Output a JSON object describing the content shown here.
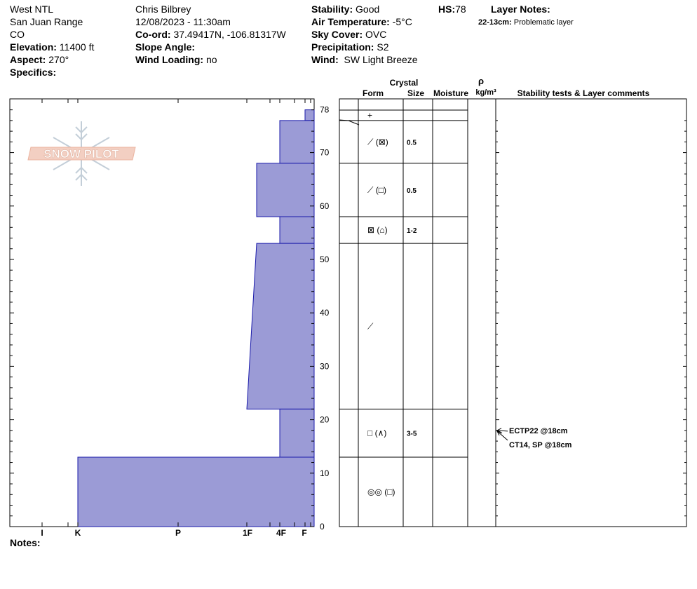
{
  "header": {
    "location_name": "West NTL",
    "range": "San Juan Range",
    "state": "CO",
    "elevation_label": "Elevation:",
    "elevation_value": "11400 ft",
    "aspect_label": "Aspect:",
    "aspect_value": "270°",
    "specifics_label": "Specifics:",
    "observer": "Chris Bilbrey",
    "datetime": "12/08/2023 - 11:30am",
    "coord_label": "Co-ord:",
    "coord_value": "37.49417N, -106.81317W",
    "slope_label": "Slope Angle:",
    "wind_loading_label": "Wind Loading:",
    "wind_loading_value": "no",
    "stability_label": "Stability:",
    "stability_value": "Good",
    "air_temp_label": "Air Temperature:",
    "air_temp_value": "-5°C",
    "sky_label": "Sky Cover:",
    "sky_value": "OVC",
    "precip_label": "Precipitation:",
    "precip_value": "S2",
    "wind_label": "Wind:",
    "wind_value": "SW Light Breeze",
    "hs_label": "HS:",
    "hs_value": "78",
    "layer_notes_label": "Layer Notes:",
    "layer_note_range": "22-13cm:",
    "layer_note_text": "Problematic layer",
    "notes_label": "Notes:"
  },
  "logo_text": "SNOW PILOT",
  "table_headers": {
    "crystal": "Crystal",
    "form": "Form",
    "size": "Size",
    "moisture": "Moisture",
    "rho": "ρ",
    "density_unit": "kg/m³",
    "comments": "Stability tests & Layer comments"
  },
  "colors": {
    "fill": "#9b9bd6",
    "stroke": "#1a1aaa"
  },
  "chart_data": {
    "type": "area",
    "title": "",
    "ylabel": "",
    "xlabel": "",
    "y_ticks": [
      0,
      10,
      20,
      30,
      40,
      50,
      60,
      70
    ],
    "hs_label": "78",
    "hardness_scale": [
      "F",
      "4F",
      "1F",
      "P",
      "K",
      "I"
    ],
    "hardness_ticks_shown": [
      "I",
      "K",
      "P",
      "1F",
      "4F",
      "F"
    ],
    "layers": [
      {
        "top": 78,
        "bottom": 76,
        "hardness_top": "F",
        "hardness_bottom": "F"
      },
      {
        "top": 76,
        "bottom": 68,
        "hardness_top": "4F",
        "hardness_bottom": "4F"
      },
      {
        "top": 68,
        "bottom": 58,
        "hardness_top": "1F+",
        "hardness_bottom": "1F+"
      },
      {
        "top": 58,
        "bottom": 53,
        "hardness_top": "4F",
        "hardness_bottom": "4F"
      },
      {
        "top": 53,
        "bottom": 22,
        "hardness_top": "1F+",
        "hardness_bottom": "1F"
      },
      {
        "top": 22,
        "bottom": 13,
        "hardness_top": "4F",
        "hardness_bottom": "4F"
      },
      {
        "top": 13,
        "bottom": 0,
        "hardness_top": "K",
        "hardness_bottom": "K"
      }
    ],
    "grain_layers": [
      {
        "top": 78,
        "bottom": 76,
        "form": "+",
        "size": ""
      },
      {
        "top": 76,
        "bottom": 68,
        "form": "⟋ (⊠)",
        "size": "0.5"
      },
      {
        "top": 68,
        "bottom": 58,
        "form": "⟋ (□)",
        "size": "0.5"
      },
      {
        "top": 58,
        "bottom": 53,
        "form": "⊠ (⌂)",
        "size": "1-2"
      },
      {
        "top": 53,
        "bottom": 22,
        "form": "⟋",
        "size": ""
      },
      {
        "top": 22,
        "bottom": 13,
        "form": "□ (∧)",
        "size": "3-5"
      },
      {
        "top": 13,
        "bottom": 0,
        "form": "◎◎ (□)",
        "size": ""
      }
    ],
    "tests": [
      {
        "label": "ECTP22 @18cm",
        "depth": 18
      },
      {
        "label": "CT14, SP @18cm",
        "depth": 18
      }
    ]
  }
}
